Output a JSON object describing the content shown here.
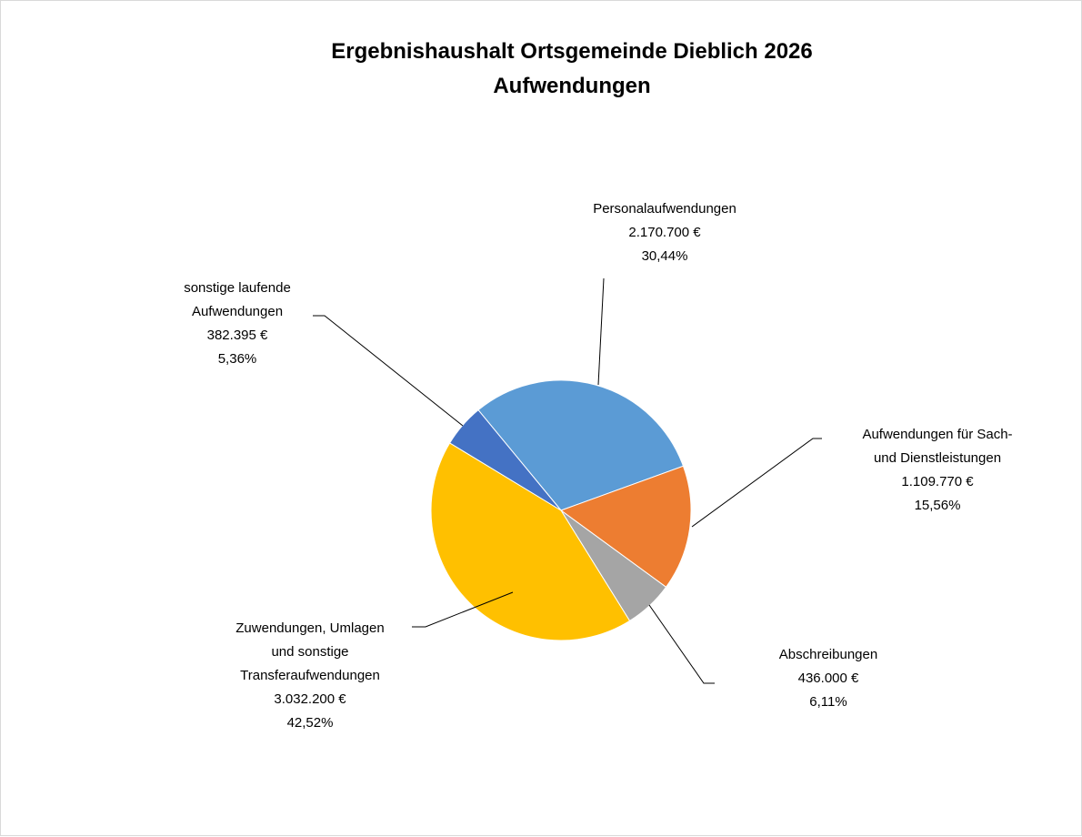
{
  "chart_data": {
    "type": "pie",
    "title": "Ergebnishaushalt Ortsgemeinde Dieblich 2026",
    "subtitle": "Aufwendungen",
    "categories": [
      "Personalaufwendungen",
      "Aufwendungen für Sach- und Dienstleistungen",
      "Abschreibungen",
      "Zuwendungen, Umlagen und sonstige Transferaufwendungen",
      "sonstige laufende Aufwendungen"
    ],
    "values": [
      2170700,
      1109770,
      436000,
      3032200,
      382395
    ],
    "value_labels": [
      "2.170.700 €",
      "1.109.770 €",
      "436.000 €",
      "3.032.200 €",
      "382.395 €"
    ],
    "percents": [
      30.44,
      15.56,
      6.11,
      42.52,
      5.36
    ],
    "percent_labels": [
      "30,44%",
      "15,56%",
      "6,11%",
      "42,52%",
      "5,36%"
    ],
    "colors": [
      "#5b9bd5",
      "#ed7d31",
      "#a5a5a5",
      "#ffc000",
      "#4472c4"
    ]
  }
}
